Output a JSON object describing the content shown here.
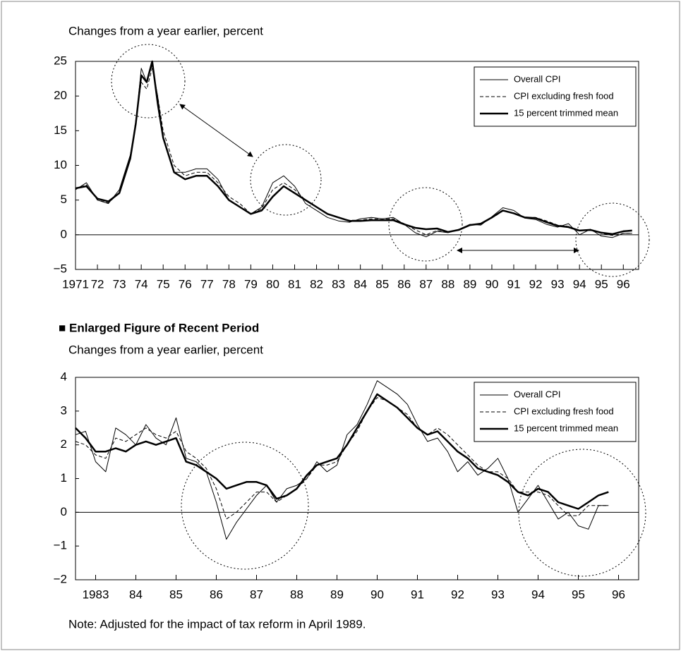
{
  "section_heading": "■ Enlarged Figure of Recent Period",
  "note": "Note: Adjusted for the impact of tax reform in April 1989.",
  "chart_data": [
    {
      "type": "line",
      "y_label": "Changes from a year earlier, percent",
      "x": [
        1971,
        1971.5,
        1972,
        1972.5,
        1973,
        1973.5,
        1973.75,
        1974,
        1974.25,
        1974.5,
        1974.75,
        1975,
        1975.5,
        1976,
        1976.5,
        1977,
        1977.5,
        1978,
        1978.5,
        1979,
        1979.5,
        1980,
        1980.5,
        1981,
        1981.5,
        1982,
        1982.5,
        1983,
        1983.5,
        1984,
        1984.5,
        1985,
        1985.5,
        1986,
        1986.5,
        1987,
        1987.5,
        1988,
        1988.5,
        1989,
        1989.5,
        1990,
        1990.5,
        1991,
        1991.5,
        1992,
        1992.5,
        1993,
        1993.5,
        1994,
        1994.5,
        1995,
        1995.5,
        1996,
        1996.4
      ],
      "series": [
        {
          "name": "Overall CPI",
          "color": "#000000",
          "line_style": "solid",
          "line_width": 1,
          "values": [
            6.5,
            7.5,
            5.0,
            4.5,
            6.5,
            11.5,
            16,
            24,
            22,
            24.5,
            20,
            14,
            9,
            9,
            9.5,
            9.5,
            8,
            5,
            4,
            3,
            4,
            7.5,
            8.5,
            7,
            4.5,
            3.5,
            2.5,
            2,
            1.8,
            2.3,
            2.5,
            2.3,
            2.5,
            1.5,
            0.3,
            -0.3,
            0.5,
            0.3,
            0.8,
            1.5,
            1.4,
            2.6,
            3.9,
            3.5,
            2.4,
            2.2,
            1.5,
            1.1,
            1.6,
            0.0,
            0.8,
            -0.2,
            -0.4,
            0.2,
            0.2
          ]
        },
        {
          "name": "CPI excluding fresh food",
          "color": "#000000",
          "line_style": "dashed",
          "line_width": 1,
          "values": [
            6.6,
            7.2,
            5.0,
            4.6,
            6.0,
            11,
            16.5,
            22,
            21,
            24,
            20,
            15,
            10,
            8.5,
            9,
            9,
            7.5,
            5.5,
            4.5,
            3,
            3.8,
            6.5,
            7.5,
            6.5,
            5,
            4,
            3,
            2.5,
            2.1,
            2.1,
            2.3,
            2.3,
            2.3,
            1.6,
            0.7,
            0.0,
            0.6,
            0.3,
            0.7,
            1.4,
            1.5,
            2.4,
            3.4,
            3.1,
            2.5,
            2.5,
            2.0,
            1.4,
            1.2,
            0.6,
            0.6,
            0.2,
            -0.1,
            0.2,
            0.2
          ]
        },
        {
          "name": "15 percent trimmed mean",
          "color": "#000000",
          "line_style": "solid",
          "line_width": 2.5,
          "values": [
            6.7,
            7.0,
            5.2,
            4.8,
            6.0,
            11,
            16,
            23,
            22,
            25,
            19,
            14,
            9,
            8,
            8.5,
            8.5,
            7,
            5,
            4,
            3,
            3.5,
            5.5,
            7,
            6,
            5,
            4,
            3,
            2.5,
            2.0,
            2.0,
            2.1,
            2.1,
            2.1,
            1.5,
            1.0,
            0.8,
            0.9,
            0.4,
            0.7,
            1.4,
            1.6,
            2.5,
            3.5,
            3.1,
            2.5,
            2.4,
            1.8,
            1.3,
            1.1,
            0.6,
            0.7,
            0.3,
            0.1,
            0.5,
            0.6
          ]
        }
      ],
      "xlim": [
        1971,
        1996.7
      ],
      "xticks": [
        {
          "value": 1971,
          "label": "1971"
        },
        {
          "value": 1972,
          "label": "72"
        },
        {
          "value": 1973,
          "label": "73"
        },
        {
          "value": 1974,
          "label": "74"
        },
        {
          "value": 1975,
          "label": "75"
        },
        {
          "value": 1976,
          "label": "76"
        },
        {
          "value": 1977,
          "label": "77"
        },
        {
          "value": 1978,
          "label": "78"
        },
        {
          "value": 1979,
          "label": "79"
        },
        {
          "value": 1980,
          "label": "80"
        },
        {
          "value": 1981,
          "label": "81"
        },
        {
          "value": 1982,
          "label": "82"
        },
        {
          "value": 1983,
          "label": "83"
        },
        {
          "value": 1984,
          "label": "84"
        },
        {
          "value": 1985,
          "label": "85"
        },
        {
          "value": 1986,
          "label": "86"
        },
        {
          "value": 1987,
          "label": "87"
        },
        {
          "value": 1988,
          "label": "88"
        },
        {
          "value": 1989,
          "label": "89"
        },
        {
          "value": 1990,
          "label": "90"
        },
        {
          "value": 1991,
          "label": "91"
        },
        {
          "value": 1992,
          "label": "92"
        },
        {
          "value": 1993,
          "label": "93"
        },
        {
          "value": 1994,
          "label": "94"
        },
        {
          "value": 1995,
          "label": "95"
        },
        {
          "value": 1996,
          "label": "96"
        }
      ],
      "ylim": [
        -5,
        25
      ],
      "yticks": [
        {
          "value": -5,
          "label": "−5"
        },
        0,
        5,
        10,
        15,
        20,
        25
      ],
      "legend": "top-right"
    },
    {
      "type": "line",
      "y_label": "Changes from a year earlier, percent",
      "x": [
        1983,
        1983.25,
        1983.5,
        1983.75,
        1984,
        1984.25,
        1984.5,
        1984.75,
        1985,
        1985.25,
        1985.5,
        1985.75,
        1986,
        1986.25,
        1986.5,
        1986.75,
        1987,
        1987.25,
        1987.5,
        1987.75,
        1988,
        1988.25,
        1988.5,
        1988.75,
        1989,
        1989.25,
        1989.5,
        1989.75,
        1990,
        1990.25,
        1990.5,
        1990.75,
        1991,
        1991.25,
        1991.5,
        1991.75,
        1992,
        1992.25,
        1992.5,
        1992.75,
        1993,
        1993.25,
        1993.5,
        1993.75,
        1994,
        1994.25,
        1994.5,
        1994.75,
        1995,
        1995.25,
        1995.5,
        1995.75,
        1996,
        1996.25
      ],
      "series": [
        {
          "name": "Overall CPI",
          "color": "#000000",
          "line_style": "solid",
          "line_width": 1,
          "values": [
            2.3,
            2.4,
            1.5,
            1.2,
            2.5,
            2.3,
            2.0,
            2.6,
            2.2,
            2.0,
            2.8,
            1.6,
            1.5,
            1.2,
            0.3,
            -0.8,
            -0.3,
            0.1,
            0.5,
            0.8,
            0.3,
            0.7,
            0.8,
            1.0,
            1.5,
            1.2,
            1.4,
            2.3,
            2.6,
            3.2,
            3.9,
            3.7,
            3.5,
            3.2,
            2.6,
            2.1,
            2.2,
            1.8,
            1.2,
            1.5,
            1.1,
            1.3,
            1.6,
            1.0,
            0.0,
            0.4,
            0.8,
            0.3,
            -0.2,
            0.0,
            -0.4,
            -0.5,
            0.2,
            0.2
          ]
        },
        {
          "name": "CPI excluding fresh food",
          "color": "#000000",
          "line_style": "dashed",
          "line_width": 1,
          "values": [
            2.1,
            2.0,
            1.7,
            1.6,
            2.2,
            2.1,
            2.3,
            2.5,
            2.3,
            2.2,
            2.4,
            1.8,
            1.6,
            1.3,
            0.7,
            -0.2,
            0.0,
            0.3,
            0.6,
            0.6,
            0.3,
            0.5,
            0.7,
            1.0,
            1.4,
            1.4,
            1.5,
            2.0,
            2.4,
            3.0,
            3.4,
            3.3,
            3.1,
            2.9,
            2.5,
            2.3,
            2.5,
            2.3,
            2.0,
            1.7,
            1.4,
            1.2,
            1.2,
            1.0,
            0.6,
            0.6,
            0.6,
            0.5,
            0.2,
            -0.1,
            -0.1,
            0.2,
            0.2,
            0.2
          ]
        },
        {
          "name": "15 percent trimmed mean",
          "color": "#000000",
          "line_style": "solid",
          "line_width": 2.5,
          "values": [
            2.5,
            2.2,
            1.8,
            1.8,
            1.9,
            1.8,
            2.0,
            2.1,
            2.0,
            2.1,
            2.2,
            1.5,
            1.4,
            1.2,
            1.0,
            0.7,
            0.8,
            0.9,
            0.9,
            0.8,
            0.4,
            0.5,
            0.7,
            1.1,
            1.4,
            1.5,
            1.6,
            2.0,
            2.5,
            3.0,
            3.5,
            3.3,
            3.1,
            2.8,
            2.5,
            2.3,
            2.4,
            2.1,
            1.8,
            1.6,
            1.3,
            1.2,
            1.1,
            0.9,
            0.6,
            0.5,
            0.7,
            0.6,
            0.3,
            0.2,
            0.1,
            0.3,
            0.5,
            0.6
          ]
        }
      ],
      "xlim": [
        1983,
        1997
      ],
      "xticks": [
        {
          "value": 1983.5,
          "label": "1983"
        },
        {
          "value": 1984.5,
          "label": "84"
        },
        {
          "value": 1985.5,
          "label": "85"
        },
        {
          "value": 1986.5,
          "label": "86"
        },
        {
          "value": 1987.5,
          "label": "87"
        },
        {
          "value": 1988.5,
          "label": "88"
        },
        {
          "value": 1989.5,
          "label": "89"
        },
        {
          "value": 1990.5,
          "label": "90"
        },
        {
          "value": 1991.5,
          "label": "91"
        },
        {
          "value": 1992.5,
          "label": "92"
        },
        {
          "value": 1993.5,
          "label": "93"
        },
        {
          "value": 1994.5,
          "label": "94"
        },
        {
          "value": 1995.5,
          "label": "95"
        },
        {
          "value": 1996.5,
          "label": "96"
        }
      ],
      "ylim": [
        -2,
        4
      ],
      "yticks": [
        {
          "value": -2,
          "label": "−2"
        },
        {
          "value": -1,
          "label": "−1"
        },
        0,
        1,
        2,
        3,
        4
      ],
      "legend": "top-right"
    }
  ]
}
